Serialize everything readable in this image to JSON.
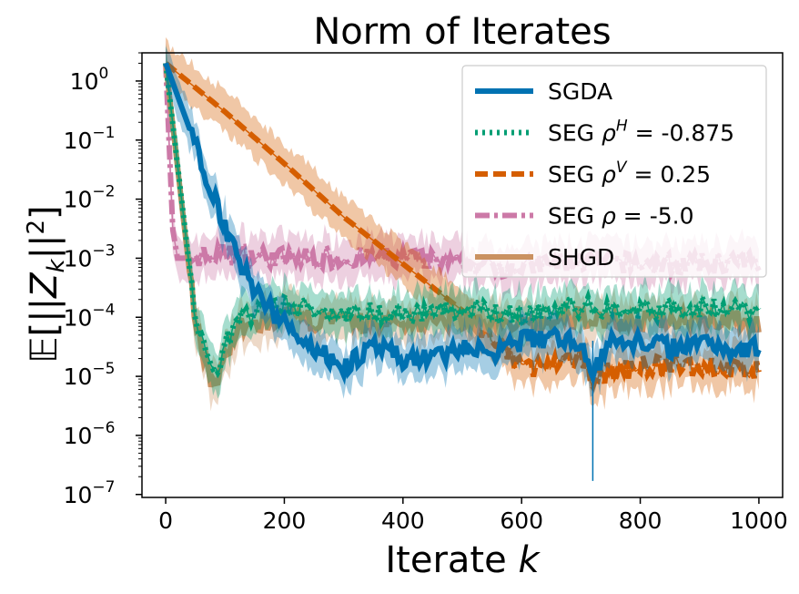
{
  "chart_data": {
    "type": "line",
    "title": "Norm of Iterates",
    "xlabel": "Iterate k",
    "ylabel": "𝔼[||Z_k||²]",
    "x_range": [
      0,
      1000
    ],
    "ylim": [
      1e-07,
      3
    ],
    "yscale": "log",
    "xticks": [
      0,
      200,
      400,
      600,
      800,
      1000
    ],
    "xtick_labels": [
      "0",
      "200",
      "400",
      "600",
      "800",
      "1000"
    ],
    "yticks": [
      1.0,
      0.1,
      0.01,
      0.001,
      0.0001,
      1e-05,
      1e-06,
      1e-07
    ],
    "ytick_bases": [
      "10",
      "10",
      "10",
      "10",
      "10",
      "10",
      "10",
      "10"
    ],
    "ytick_exponents": [
      "0",
      "−1",
      "−2",
      "−3",
      "−4",
      "−5",
      "−6",
      "−7"
    ],
    "grid": false,
    "legend_position": "upper right",
    "series": [
      {
        "name": "SGDA",
        "legend_parts": [
          "SGDA"
        ],
        "color": "#0072b2",
        "dash": "none",
        "x": [
          0,
          120,
          160,
          200,
          250,
          300,
          350,
          400,
          450,
          500,
          550,
          600,
          650,
          700,
          720,
          750,
          800,
          850,
          900,
          950,
          1000
        ],
        "y": [
          2.0,
          0.001,
          0.0002,
          8e-05,
          3e-05,
          1.5e-05,
          3e-05,
          2e-05,
          2e-05,
          3e-05,
          2.5e-05,
          4e-05,
          4.5e-05,
          4e-05,
          1e-05,
          4e-05,
          4e-05,
          3e-05,
          4e-05,
          3e-05,
          3e-05
        ],
        "noise_low": 2e-07
      },
      {
        "name": "SEG ρ^H = -0.875",
        "legend_parts": [
          "SEG ",
          "ρ",
          "H",
          " = -0.875"
        ],
        "color": "#009e73",
        "dash": "dotted",
        "x": [
          0,
          50,
          80,
          120,
          200,
          300,
          400,
          500,
          600,
          700,
          800,
          900,
          1000
        ],
        "y": [
          2.0,
          0.0001,
          1e-05,
          0.0001,
          0.00015,
          0.00012,
          0.00012,
          0.00013,
          0.00011,
          0.00015,
          0.00013,
          0.00015,
          0.00013
        ]
      },
      {
        "name": "SEG ρ^V = 0.25",
        "legend_parts": [
          "SEG ",
          "ρ",
          "V",
          " = 0.25"
        ],
        "color": "#d55e00",
        "dash": "dashed",
        "x": [
          0,
          100,
          200,
          300,
          400,
          500,
          550,
          600,
          650,
          700,
          720,
          800,
          900,
          1000
        ],
        "y": [
          2.0,
          0.3,
          0.04,
          0.005,
          0.0008,
          0.00013,
          4e-05,
          1.5e-05,
          1.4e-05,
          2e-05,
          1e-05,
          1.5e-05,
          1.5e-05,
          1.2e-05
        ]
      },
      {
        "name": "SEG ρ = -5.0",
        "legend_parts": [
          "SEG ",
          "ρ",
          "",
          " = -5.0"
        ],
        "color": "#cc79a7",
        "dash": "dashdot",
        "x": [
          0,
          12,
          20,
          30,
          100,
          200,
          300,
          400,
          500,
          600,
          700,
          800,
          900,
          1000
        ],
        "y": [
          2.0,
          0.003,
          0.001,
          0.001,
          0.0012,
          0.001,
          0.001,
          0.001,
          0.0008,
          0.0007,
          0.0009,
          0.0008,
          0.0008,
          0.0009
        ]
      },
      {
        "name": "SHGD",
        "legend_parts": [
          "SHGD"
        ],
        "color": "#ca9161",
        "dash": "none",
        "x": [
          0,
          50,
          80,
          120,
          200,
          300,
          400,
          500,
          600,
          700,
          800,
          900,
          1000
        ],
        "y": [
          2.0,
          8e-05,
          7e-06,
          6e-05,
          0.0001,
          8e-05,
          8e-05,
          9e-05,
          7e-05,
          0.0001,
          8e-05,
          0.0001,
          8e-05
        ]
      }
    ]
  }
}
